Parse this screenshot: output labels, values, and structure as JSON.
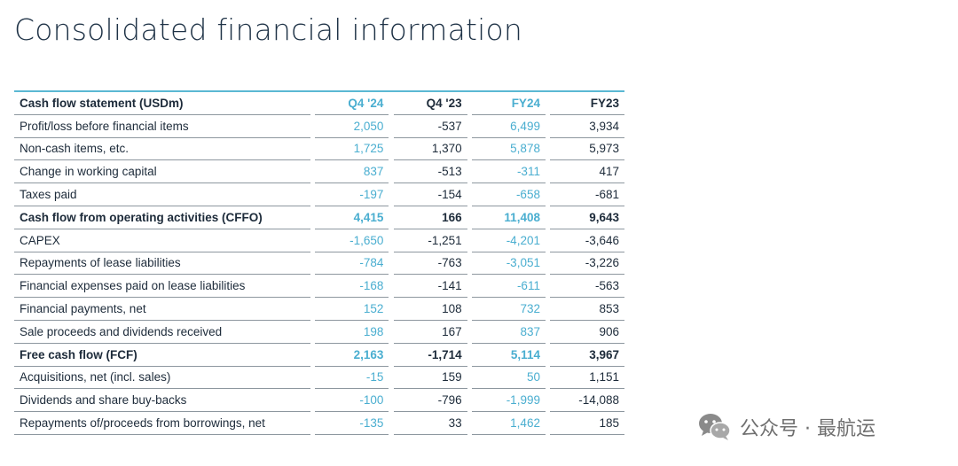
{
  "title": "Consolidated financial information",
  "table": {
    "header": {
      "label": "Cash flow statement (USDm)",
      "q4_24": "Q4 '24",
      "q4_23": "Q4 '23",
      "fy24": "FY24",
      "fy23": "FY23"
    },
    "rows": [
      {
        "label": "Profit/loss before financial items",
        "q4_24": "2,050",
        "q4_23": "-537",
        "fy24": "6,499",
        "fy23": "3,934"
      },
      {
        "label": "Non-cash items, etc.",
        "q4_24": "1,725",
        "q4_23": "1,370",
        "fy24": "5,878",
        "fy23": "5,973"
      },
      {
        "label": "Change in working capital",
        "q4_24": "837",
        "q4_23": "-513",
        "fy24": "-311",
        "fy23": "417"
      },
      {
        "label": "Taxes paid",
        "q4_24": "-197",
        "q4_23": "-154",
        "fy24": "-658",
        "fy23": "-681"
      },
      {
        "label": "Cash flow from operating activities (CFFO)",
        "q4_24": "4,415",
        "q4_23": "166",
        "fy24": "11,408",
        "fy23": "9,643"
      },
      {
        "label": "CAPEX",
        "q4_24": "-1,650",
        "q4_23": "-1,251",
        "fy24": "-4,201",
        "fy23": "-3,646"
      },
      {
        "label": "Repayments of lease liabilities",
        "q4_24": "-784",
        "q4_23": "-763",
        "fy24": "-3,051",
        "fy23": "-3,226"
      },
      {
        "label": "Financial expenses paid on lease liabilities",
        "q4_24": "-168",
        "q4_23": "-141",
        "fy24": "-611",
        "fy23": "-563"
      },
      {
        "label": "Financial payments, net",
        "q4_24": "152",
        "q4_23": "108",
        "fy24": "732",
        "fy23": "853"
      },
      {
        "label": "Sale proceeds and dividends received",
        "q4_24": "198",
        "q4_23": "167",
        "fy24": "837",
        "fy23": "906"
      },
      {
        "label": "Free cash flow (FCF)",
        "q4_24": "2,163",
        "q4_23": "-1,714",
        "fy24": "5,114",
        "fy23": "3,967"
      },
      {
        "label": "Acquisitions, net (incl. sales)",
        "q4_24": "-15",
        "q4_23": "159",
        "fy24": "50",
        "fy23": "1,151"
      },
      {
        "label": "Dividends and share buy-backs",
        "q4_24": "-100",
        "q4_23": "-796",
        "fy24": "-1,999",
        "fy23": "-14,088"
      },
      {
        "label": "Repayments of/proceeds from borrowings, net",
        "q4_24": "-135",
        "q4_23": "33",
        "fy24": "1,462",
        "fy23": "185"
      }
    ]
  },
  "watermark": {
    "icon": "wechat-icon",
    "text": "公众号 · 最航运"
  },
  "colors": {
    "accent": "#4aaed0",
    "text": "#1d2b3a",
    "rule_top": "#5ab8d3",
    "rule": "#8d979f"
  }
}
